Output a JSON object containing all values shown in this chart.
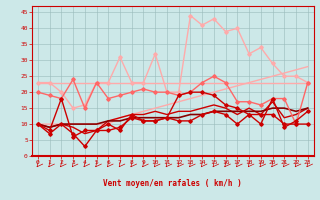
{
  "x": [
    0,
    1,
    2,
    3,
    4,
    5,
    6,
    7,
    8,
    9,
    10,
    11,
    12,
    13,
    14,
    15,
    16,
    17,
    18,
    19,
    20,
    21,
    22,
    23
  ],
  "lines": [
    {
      "y": [
        23,
        23,
        23,
        23,
        23,
        23,
        23,
        23,
        23,
        23,
        23,
        23,
        23,
        23,
        23,
        23,
        23,
        23,
        23,
        23,
        23,
        23,
        23,
        23
      ],
      "color": "#ffaaaa",
      "lw": 1.0,
      "marker": null
    },
    {
      "y": [
        10,
        10,
        10,
        10,
        10,
        10,
        10,
        12,
        13,
        14,
        15,
        16,
        17,
        18,
        19,
        20,
        21,
        22,
        23,
        24,
        25,
        26,
        27,
        28
      ],
      "color": "#ffaaaa",
      "lw": 1.0,
      "marker": null
    },
    {
      "y": [
        23,
        23,
        20,
        15,
        16,
        23,
        23,
        31,
        23,
        23,
        32,
        20,
        20,
        44,
        41,
        43,
        39,
        40,
        32,
        34,
        29,
        25,
        25,
        23
      ],
      "color": "#ffaaaa",
      "lw": 1.0,
      "marker": "D",
      "ms": 1.8
    },
    {
      "y": [
        20,
        19,
        18,
        24,
        15,
        23,
        18,
        19,
        20,
        21,
        20,
        20,
        19,
        20,
        23,
        25,
        23,
        17,
        17,
        16,
        18,
        18,
        10,
        23
      ],
      "color": "#ff6666",
      "lw": 1.0,
      "marker": "D",
      "ms": 1.8
    },
    {
      "y": [
        10,
        8,
        18,
        6,
        8,
        8,
        8,
        9,
        12,
        11,
        11,
        12,
        19,
        20,
        20,
        19,
        16,
        15,
        13,
        13,
        13,
        10,
        10,
        10
      ],
      "color": "#cc0000",
      "lw": 1.0,
      "marker": "D",
      "ms": 1.8
    },
    {
      "y": [
        10,
        7,
        10,
        7,
        3,
        8,
        10,
        8,
        13,
        11,
        11,
        12,
        11,
        11,
        13,
        14,
        13,
        10,
        13,
        10,
        18,
        9,
        11,
        14
      ],
      "color": "#cc0000",
      "lw": 1.0,
      "marker": "D",
      "ms": 1.8
    },
    {
      "y": [
        10,
        9,
        10,
        9,
        7,
        8,
        11,
        12,
        13,
        13,
        14,
        13,
        14,
        14,
        15,
        16,
        15,
        13,
        15,
        13,
        17,
        12,
        13,
        15
      ],
      "color": "#cc0000",
      "lw": 1.0,
      "marker": null
    },
    {
      "y": [
        10,
        9,
        10,
        10,
        10,
        10,
        11,
        11,
        12,
        12,
        12,
        12,
        12,
        13,
        13,
        14,
        14,
        14,
        14,
        14,
        15,
        15,
        14,
        15
      ],
      "color": "#880000",
      "lw": 1.2,
      "marker": null
    }
  ],
  "xlabel": "Vent moyen/en rafales ( km/h )",
  "xlim": [
    -0.5,
    23.5
  ],
  "ylim": [
    0,
    47
  ],
  "yticks": [
    0,
    5,
    10,
    15,
    20,
    25,
    30,
    35,
    40,
    45
  ],
  "xticks": [
    0,
    1,
    2,
    3,
    4,
    5,
    6,
    7,
    8,
    9,
    10,
    11,
    12,
    13,
    14,
    15,
    16,
    17,
    18,
    19,
    20,
    21,
    22,
    23
  ],
  "bg_color": "#cce8e8",
  "grid_color": "#99bbbb",
  "tick_color": "#cc0000",
  "label_color": "#cc0000"
}
